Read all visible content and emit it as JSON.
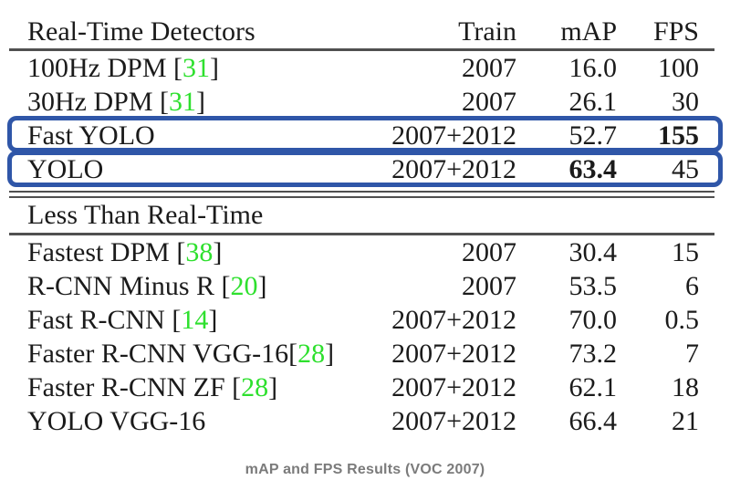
{
  "table": {
    "headers": {
      "detectors": "Real-Time Detectors",
      "train": "Train",
      "map": "mAP",
      "fps": "FPS"
    },
    "bracket_open": "[",
    "bracket_close": "]",
    "realtime_rows": [
      {
        "label": "100Hz DPM",
        "cite": "31",
        "train": "2007",
        "map": "16.0",
        "fps": "100"
      },
      {
        "label": "30Hz DPM",
        "cite": "31",
        "train": "2007",
        "map": "26.1",
        "fps": "30"
      },
      {
        "label": "Fast YOLO",
        "train": "2007+2012",
        "map": "52.7",
        "fps": "155",
        "fps_bold": true,
        "highlighted": true
      },
      {
        "label": "YOLO",
        "train": "2007+2012",
        "map": "63.4",
        "map_bold": true,
        "fps": "45",
        "highlighted": true
      }
    ],
    "section_header": "Less Than Real-Time",
    "less_than_realtime_rows": [
      {
        "label": "Fastest DPM",
        "cite": "38",
        "train": "2007",
        "map": "30.4",
        "fps": "15"
      },
      {
        "label": "R-CNN Minus R",
        "cite": "20",
        "train": "2007",
        "map": "53.5",
        "fps": "6"
      },
      {
        "label": "Fast R-CNN",
        "cite": "14",
        "train": "2007+2012",
        "map": "70.0",
        "fps": "0.5"
      },
      {
        "label": "Faster R-CNN VGG-16",
        "cite": "28",
        "cite_nospace": true,
        "train": "2007+2012",
        "map": "73.2",
        "fps": "7"
      },
      {
        "label": "Faster R-CNN ZF",
        "cite": "28",
        "train": "2007+2012",
        "map": "62.1",
        "fps": "18"
      },
      {
        "label": "YOLO VGG-16",
        "train": "2007+2012",
        "map": "66.4",
        "fps": "21"
      }
    ]
  },
  "caption": "mAP and FPS Results (VOC 2007)",
  "colors": {
    "text": "#1b1b1b",
    "citation_green": "#2ee02e",
    "highlight_blue": "#2f56a8",
    "rule_gray": "#505050",
    "caption_gray": "#7b7b7b"
  }
}
